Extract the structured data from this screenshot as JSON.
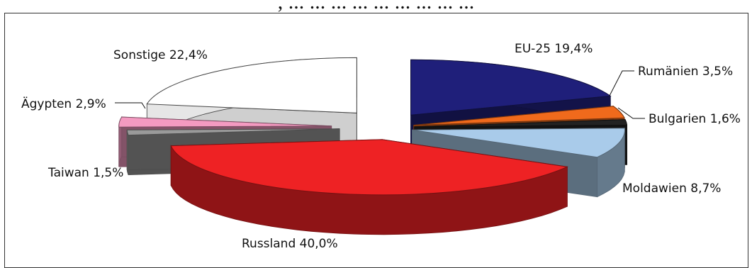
{
  "header": {
    "title": ", ... ... ... ...    ... ...  ...  ... ..."
  },
  "chart_data": {
    "type": "pie",
    "three_d": true,
    "exploded": true,
    "legend": "none",
    "slices": [
      {
        "name": "EU-25",
        "value": 19.4,
        "label": "EU-25 19,4%",
        "color": "#1f1f7a"
      },
      {
        "name": "Rumänien",
        "value": 3.5,
        "label": "Rumänien 3,5%",
        "color": "#f06a1c"
      },
      {
        "name": "Bulgarien",
        "value": 1.6,
        "label": "Bulgarien 1,6%",
        "color": "#222222"
      },
      {
        "name": "Moldawien",
        "value": 8.7,
        "label": "Moldawien 8,7%",
        "color": "#a9cbea"
      },
      {
        "name": "Russland",
        "value": 40.0,
        "label": "Russland 40,0%",
        "color": "#ee2224"
      },
      {
        "name": "Taiwan",
        "value": 1.5,
        "label": "Taiwan 1,5%",
        "color": "#9a9a9a"
      },
      {
        "name": "Ägypten",
        "value": 2.9,
        "label": "Ägypten 2,9%",
        "color": "#f49ac1"
      },
      {
        "name": "Sonstige",
        "value": 22.4,
        "label": "Sonstige 22,4%",
        "color": "#ffffff"
      }
    ]
  }
}
